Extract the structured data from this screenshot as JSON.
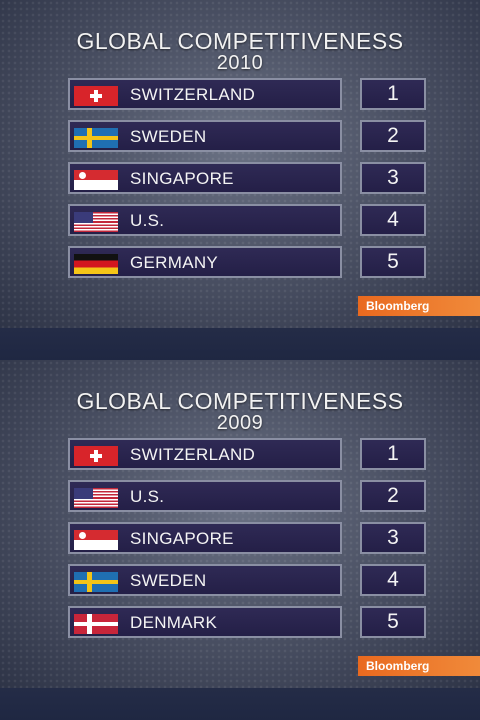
{
  "panels": [
    {
      "title_line1": "GLOBAL COMPETITIVENESS",
      "title_line2": "2010",
      "rows": [
        {
          "flag": "switzerland-flag",
          "country": "SWITZERLAND",
          "rank": "1"
        },
        {
          "flag": "sweden-flag",
          "country": "SWEDEN",
          "rank": "2"
        },
        {
          "flag": "singapore-flag",
          "country": "SINGAPORE",
          "rank": "3"
        },
        {
          "flag": "us-flag",
          "country": "U.S.",
          "rank": "4"
        },
        {
          "flag": "germany-flag",
          "country": "GERMANY",
          "rank": "5"
        }
      ],
      "source_badge": "Bloomberg"
    },
    {
      "title_line1": "GLOBAL COMPETITIVENESS",
      "title_line2": "2009",
      "rows": [
        {
          "flag": "switzerland-flag",
          "country": "SWITZERLAND",
          "rank": "1"
        },
        {
          "flag": "us-flag",
          "country": "U.S.",
          "rank": "2"
        },
        {
          "flag": "singapore-flag",
          "country": "SINGAPORE",
          "rank": "3"
        },
        {
          "flag": "sweden-flag",
          "country": "SWEDEN",
          "rank": "4"
        },
        {
          "flag": "denmark-flag",
          "country": "DENMARK",
          "rank": "5"
        }
      ],
      "source_badge": "Bloomberg"
    }
  ]
}
